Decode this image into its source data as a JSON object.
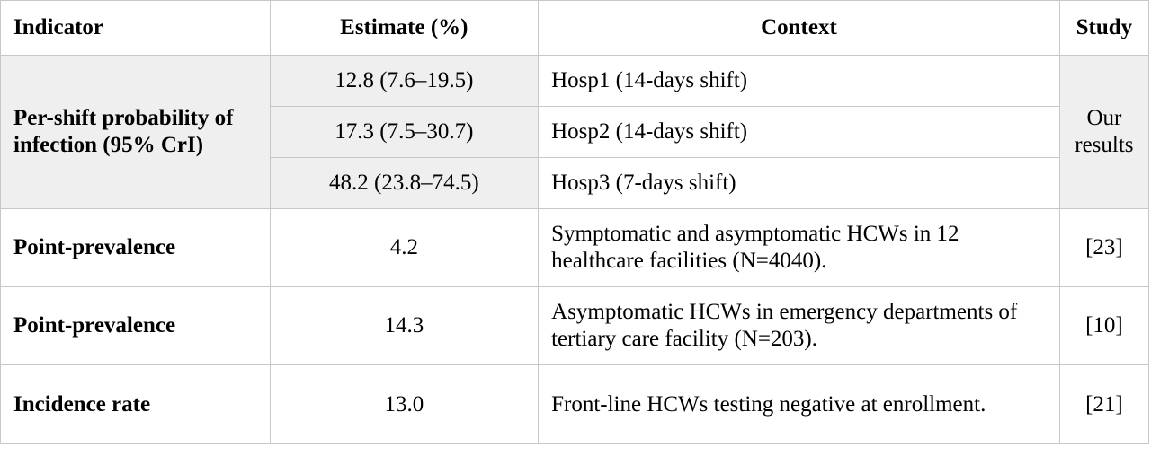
{
  "header": {
    "indicator": "Indicator",
    "estimate": "Estimate (%)",
    "context": "Context",
    "study": "Study"
  },
  "group": {
    "indicator": "Per-shift probability of infection (95% CrI)",
    "study": "Our results",
    "rows": [
      {
        "estimate": "12.8 (7.6–19.5)",
        "context": "Hosp1 (14-days shift)"
      },
      {
        "estimate": "17.3 (7.5–30.7)",
        "context": "Hosp2 (14-days shift)"
      },
      {
        "estimate": "48.2 (23.8–74.5)",
        "context": "Hosp3 (7-days shift)"
      }
    ]
  },
  "rows": [
    {
      "indicator": "Point-prevalence",
      "estimate": "4.2",
      "context": "Symptomatic and asymptomatic HCWs in 12 healthcare facilities (N=4040).",
      "study": "[23]"
    },
    {
      "indicator": "Point-prevalence",
      "estimate": "14.3",
      "context": "Asymptomatic HCWs in emergency departments of tertiary care facility (N=203).",
      "study": "[10]"
    },
    {
      "indicator": "Incidence rate",
      "estimate": "13.0",
      "context": "Front-line HCWs testing negative at enrollment.",
      "study": "[21]"
    }
  ]
}
